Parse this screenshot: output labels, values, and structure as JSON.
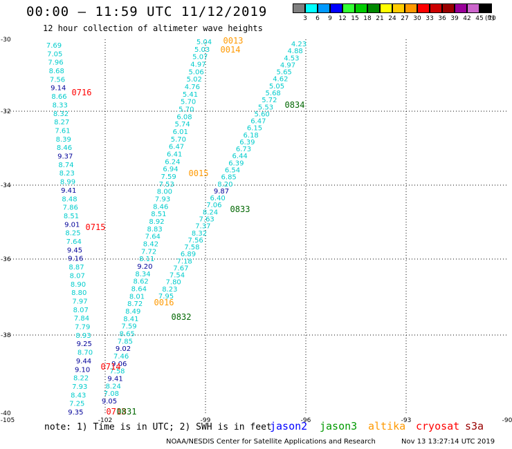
{
  "header": {
    "title": "00:00 – 11:59 UTC 11/12/2019",
    "subtitle": "12 hour collection of altimeter wave heights"
  },
  "colorbar": {
    "unit": "(ft)",
    "steps": [
      {
        "label": "3",
        "color": "#808080"
      },
      {
        "label": "6",
        "color": "#00ffff"
      },
      {
        "label": "9",
        "color": "#0099ff"
      },
      {
        "label": "12",
        "color": "#0000ff"
      },
      {
        "label": "15",
        "color": "#33ff33"
      },
      {
        "label": "18",
        "color": "#00cc00"
      },
      {
        "label": "21",
        "color": "#008800"
      },
      {
        "label": "24",
        "color": "#ffff00"
      },
      {
        "label": "27",
        "color": "#ffcc00"
      },
      {
        "label": "30",
        "color": "#ff9900"
      },
      {
        "label": "33",
        "color": "#ff0000"
      },
      {
        "label": "36",
        "color": "#cc0000"
      },
      {
        "label": "39",
        "color": "#990000"
      },
      {
        "label": "42",
        "color": "#990099"
      },
      {
        "label": "45",
        "color": "#cc66cc"
      },
      {
        "label": "70",
        "color": "#000000"
      }
    ]
  },
  "map": {
    "lon_labels": [
      "-105",
      "-102",
      "-99",
      "-96",
      "-93",
      "-90"
    ],
    "lat_labels": [
      "-30",
      "-32",
      "-34",
      "-36",
      "-38",
      "-40"
    ],
    "colors": {
      "cyan": "#00cccc",
      "blue": "#000099",
      "green": "#006600",
      "orange": "#ff9900",
      "red": "#ff0000",
      "lightblue": "#0099ff"
    },
    "passes": [
      {
        "id": "p1",
        "values": [
          "7.69",
          "7.05",
          "7.96",
          "8.68",
          "7.56",
          "9.14",
          "8.66",
          "8.33",
          "8.32",
          "8.27",
          "7.61",
          "8.39",
          "8.46",
          "9.37",
          "8.74",
          "8.23",
          "8.99",
          "9.41",
          "8.48",
          "7.86",
          "8.51",
          "9.01",
          "8.25",
          "7.64",
          "9.45",
          "9.16",
          "8.87",
          "8.07",
          "8.90",
          "8.80",
          "7.97",
          "8.07",
          "7.84",
          "7.79",
          "8.93",
          "9.25",
          "8.70",
          "9.44",
          "9.10",
          "8.22",
          "7.93",
          "8.43",
          "7.25",
          "9.35"
        ],
        "levels": [
          "c",
          "c",
          "c",
          "c",
          "c",
          "b",
          "c",
          "c",
          "c",
          "c",
          "c",
          "c",
          "c",
          "b",
          "c",
          "c",
          "c",
          "b",
          "c",
          "c",
          "c",
          "b",
          "c",
          "c",
          "b",
          "b",
          "c",
          "c",
          "c",
          "c",
          "c",
          "c",
          "c",
          "c",
          "c",
          "b",
          "c",
          "b",
          "b",
          "c",
          "c",
          "c",
          "c",
          "b"
        ]
      },
      {
        "id": "p2",
        "values": [
          "5.04",
          "5.03",
          "5.07",
          "4.97",
          "5.06",
          "5.02",
          "4.76",
          "5.41",
          "5.70",
          "5.70",
          "6.08",
          "5.74",
          "6.01",
          "5.70",
          "6.47",
          "6.41",
          "6.24",
          "6.94",
          "7.59",
          "7.53",
          "8.00",
          "7.93",
          "8.46",
          "8.51",
          "8.92",
          "8.83",
          "7.64",
          "8.42",
          "7.72",
          "8.11",
          "9.20",
          "8.34",
          "8.62",
          "8.64",
          "8.01",
          "8.72",
          "8.49",
          "8.41",
          "7.59",
          "8.65",
          "7.85",
          "9.02",
          "7.46",
          "9.06",
          "7.58",
          "9.41",
          "8.24",
          "7.08",
          "9.05"
        ],
        "levels": [
          "c",
          "c",
          "c",
          "c",
          "c",
          "c",
          "c",
          "c",
          "c",
          "c",
          "c",
          "c",
          "c",
          "c",
          "c",
          "c",
          "c",
          "c",
          "c",
          "c",
          "c",
          "c",
          "c",
          "c",
          "c",
          "c",
          "c",
          "c",
          "c",
          "c",
          "b",
          "c",
          "c",
          "c",
          "c",
          "c",
          "c",
          "c",
          "c",
          "c",
          "c",
          "b",
          "c",
          "b",
          "c",
          "b",
          "c",
          "c",
          "b"
        ]
      },
      {
        "id": "p3",
        "values": [
          "4.23",
          "4.88",
          "4.53",
          "4.97",
          "5.65",
          "4.62",
          "5.05",
          "5.68",
          "5.72",
          "5.53",
          "5.60",
          "6.47",
          "6.15",
          "6.18",
          "6.39",
          "6.73",
          "6.44",
          "6.39",
          "6.54",
          "6.85",
          "8.20",
          "9.87",
          "6.40",
          "7.06",
          "8.24",
          "7.63",
          "7.37",
          "8.32",
          "7.56",
          "7.58",
          "6.89",
          "7.18",
          "7.67",
          "7.54",
          "7.80",
          "8.23",
          "7.95"
        ],
        "levels": [
          "c",
          "c",
          "c",
          "c",
          "c",
          "c",
          "c",
          "c",
          "c",
          "c",
          "c",
          "c",
          "c",
          "c",
          "c",
          "c",
          "c",
          "c",
          "c",
          "c",
          "c",
          "b",
          "c",
          "c",
          "c",
          "c",
          "c",
          "c",
          "c",
          "c",
          "c",
          "c",
          "c",
          "c",
          "c",
          "c",
          "c"
        ]
      }
    ],
    "time_labels": [
      {
        "text": "0013",
        "sat": "orange"
      },
      {
        "text": "0014",
        "sat": "orange"
      },
      {
        "text": "0716",
        "sat": "red"
      },
      {
        "text": "0834",
        "sat": "green"
      },
      {
        "text": "0015",
        "sat": "orange"
      },
      {
        "text": "0833",
        "sat": "green"
      },
      {
        "text": "0715",
        "sat": "red"
      },
      {
        "text": "0016",
        "sat": "orange"
      },
      {
        "text": "0832",
        "sat": "green"
      },
      {
        "text": "0714",
        "sat": "red"
      },
      {
        "text": "0713",
        "sat": "red"
      },
      {
        "text": "0831",
        "sat": "green"
      }
    ]
  },
  "footer": {
    "note": "note: 1) Time is in UTC; 2) SWH is in feet",
    "legend": [
      {
        "label": "jason2",
        "color": "#0000ff"
      },
      {
        "label": "jason3",
        "color": "#009900"
      },
      {
        "label": "altika",
        "color": "#ff9900"
      },
      {
        "label": "cryosat",
        "color": "#ff0000"
      },
      {
        "label": "s3a",
        "color": "#990000"
      }
    ],
    "credit": "NOAA/NESDIS Center for Satellite Applications and Research",
    "timestamp": "Nov 13 13:27:14 UTC 2019"
  }
}
